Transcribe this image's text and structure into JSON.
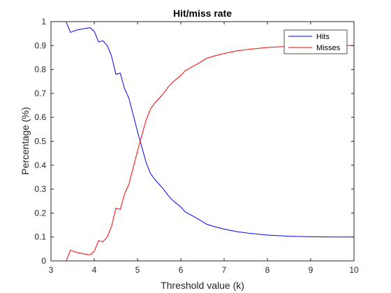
{
  "chart_data": {
    "type": "line",
    "title": "Hit/miss rate",
    "xlabel": "Threshold value (k)",
    "ylabel": "Percentage (%)",
    "xlim": [
      3,
      10
    ],
    "ylim": [
      0,
      1
    ],
    "xticks": [
      3,
      4,
      5,
      6,
      7,
      8,
      9,
      10
    ],
    "yticks": [
      0,
      0.1,
      0.2,
      0.3,
      0.4,
      0.5,
      0.6,
      0.7,
      0.8,
      0.9,
      1
    ],
    "xtick_labels": [
      "3",
      "4",
      "5",
      "6",
      "7",
      "8",
      "9",
      "10"
    ],
    "ytick_labels": [
      "0",
      "0.1",
      "0.2",
      "0.3",
      "0.4",
      "0.5",
      "0.6",
      "0.7",
      "0.8",
      "0.9",
      "1"
    ],
    "grid": false,
    "legend": {
      "placement": "top-right"
    },
    "colors": {
      "axes": "#262626",
      "background": "#ffffff"
    },
    "series": [
      {
        "name": "Hits",
        "color": "#0000ff",
        "points": [
          [
            3.0,
            1.0
          ],
          [
            3.35,
            1.0
          ],
          [
            3.45,
            0.955
          ],
          [
            3.6,
            0.965
          ],
          [
            3.75,
            0.97
          ],
          [
            3.9,
            0.975
          ],
          [
            4.0,
            0.96
          ],
          [
            4.1,
            0.915
          ],
          [
            4.2,
            0.92
          ],
          [
            4.3,
            0.9
          ],
          [
            4.4,
            0.855
          ],
          [
            4.5,
            0.78
          ],
          [
            4.6,
            0.785
          ],
          [
            4.7,
            0.72
          ],
          [
            4.8,
            0.68
          ],
          [
            4.9,
            0.61
          ],
          [
            5.0,
            0.54
          ],
          [
            5.1,
            0.475
          ],
          [
            5.2,
            0.41
          ],
          [
            5.3,
            0.365
          ],
          [
            5.4,
            0.34
          ],
          [
            5.5,
            0.32
          ],
          [
            5.6,
            0.3
          ],
          [
            5.7,
            0.275
          ],
          [
            5.8,
            0.255
          ],
          [
            5.9,
            0.24
          ],
          [
            6.0,
            0.225
          ],
          [
            6.1,
            0.205
          ],
          [
            6.2,
            0.195
          ],
          [
            6.4,
            0.175
          ],
          [
            6.6,
            0.153
          ],
          [
            6.8,
            0.142
          ],
          [
            7.0,
            0.133
          ],
          [
            7.3,
            0.122
          ],
          [
            7.6,
            0.115
          ],
          [
            8.0,
            0.108
          ],
          [
            8.5,
            0.103
          ],
          [
            9.0,
            0.101
          ],
          [
            9.5,
            0.1
          ],
          [
            10.0,
            0.1
          ]
        ]
      },
      {
        "name": "Misses",
        "color": "#ff0000",
        "points": [
          [
            3.0,
            0.0
          ],
          [
            3.35,
            0.0
          ],
          [
            3.45,
            0.045
          ],
          [
            3.6,
            0.035
          ],
          [
            3.75,
            0.03
          ],
          [
            3.9,
            0.025
          ],
          [
            4.0,
            0.04
          ],
          [
            4.1,
            0.085
          ],
          [
            4.2,
            0.08
          ],
          [
            4.3,
            0.1
          ],
          [
            4.4,
            0.145
          ],
          [
            4.5,
            0.22
          ],
          [
            4.6,
            0.215
          ],
          [
            4.7,
            0.28
          ],
          [
            4.8,
            0.32
          ],
          [
            4.9,
            0.39
          ],
          [
            5.0,
            0.46
          ],
          [
            5.1,
            0.525
          ],
          [
            5.2,
            0.59
          ],
          [
            5.3,
            0.635
          ],
          [
            5.4,
            0.66
          ],
          [
            5.5,
            0.68
          ],
          [
            5.6,
            0.7
          ],
          [
            5.7,
            0.725
          ],
          [
            5.8,
            0.745
          ],
          [
            5.9,
            0.76
          ],
          [
            6.0,
            0.775
          ],
          [
            6.1,
            0.795
          ],
          [
            6.2,
            0.805
          ],
          [
            6.4,
            0.825
          ],
          [
            6.6,
            0.847
          ],
          [
            6.8,
            0.858
          ],
          [
            7.0,
            0.867
          ],
          [
            7.3,
            0.878
          ],
          [
            7.6,
            0.885
          ],
          [
            8.0,
            0.892
          ],
          [
            8.5,
            0.897
          ],
          [
            9.0,
            0.899
          ],
          [
            9.5,
            0.9
          ],
          [
            10.0,
            0.9
          ]
        ]
      }
    ]
  }
}
